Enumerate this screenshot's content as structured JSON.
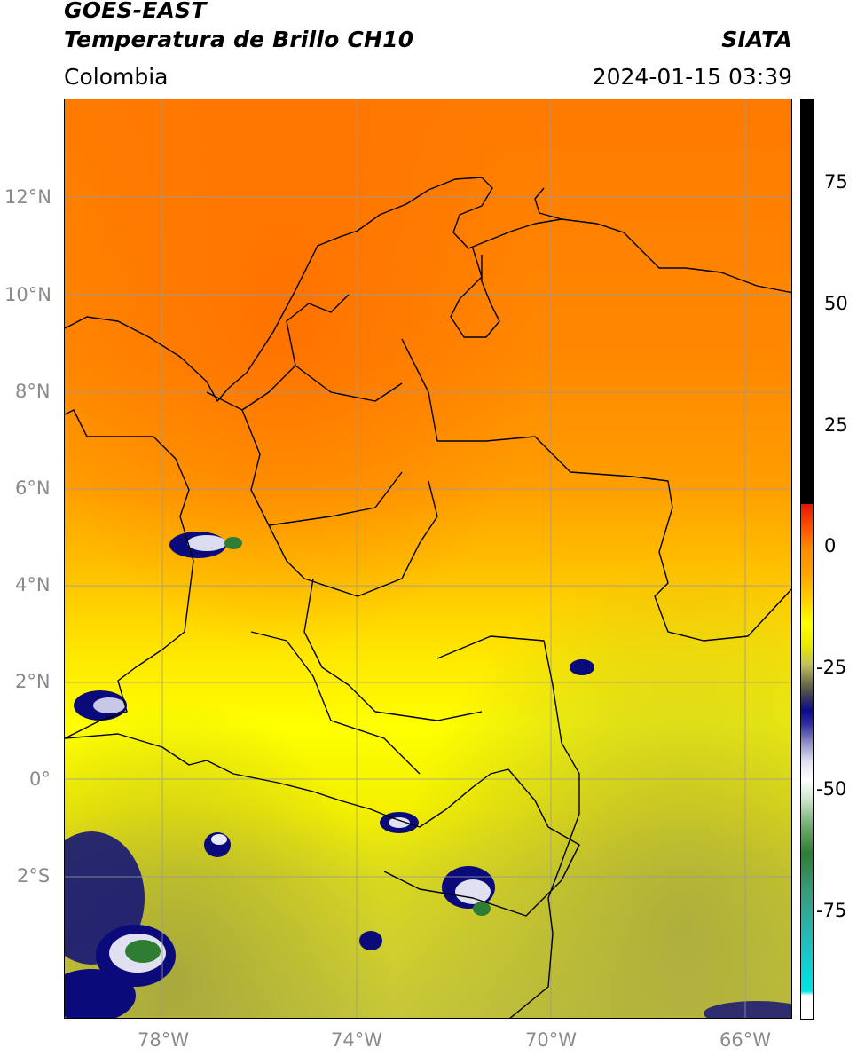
{
  "header": {
    "satellite": "GOES-EAST",
    "product": "Temperatura de Brillo CH10",
    "agency": "SIATA",
    "region": "Colombia",
    "datetime": "2024-01-15 03:39"
  },
  "map": {
    "lat_range": [
      -5,
      14
    ],
    "lon_range": [
      -80,
      -65
    ],
    "gridlines": true,
    "lat_ticks": [
      {
        "value": 12,
        "label": "12°N"
      },
      {
        "value": 10,
        "label": "10°N"
      },
      {
        "value": 8,
        "label": "8°N"
      },
      {
        "value": 6,
        "label": "6°N"
      },
      {
        "value": 4,
        "label": "4°N"
      },
      {
        "value": 2,
        "label": "2°N"
      },
      {
        "value": 0,
        "label": "0°"
      },
      {
        "value": -2,
        "label": "2°S"
      }
    ],
    "lon_ticks": [
      {
        "value": -78,
        "label": "78°W"
      },
      {
        "value": -74,
        "label": "74°W"
      },
      {
        "value": -70,
        "label": "70°W"
      },
      {
        "value": -66,
        "label": "66°W"
      }
    ]
  },
  "colorbar": {
    "range": [
      -100,
      90
    ],
    "ticks": [
      {
        "value": 75,
        "label": "75"
      },
      {
        "value": 50,
        "label": "50"
      },
      {
        "value": 25,
        "label": "25"
      },
      {
        "value": 0,
        "label": "0"
      },
      {
        "value": -25,
        "label": "-25"
      },
      {
        "value": -50,
        "label": "-50"
      },
      {
        "value": -75,
        "label": "-75"
      }
    ],
    "colors": {
      "warm_top": "#000000",
      "red": "#e02000",
      "orange": "#ff8c00",
      "yellow": "#ffff00",
      "olive": "#a0a030",
      "navy": "#0a0a7a",
      "white": "#ffffff",
      "green": "#2e7d32",
      "cyan": "#00e5e5"
    }
  }
}
